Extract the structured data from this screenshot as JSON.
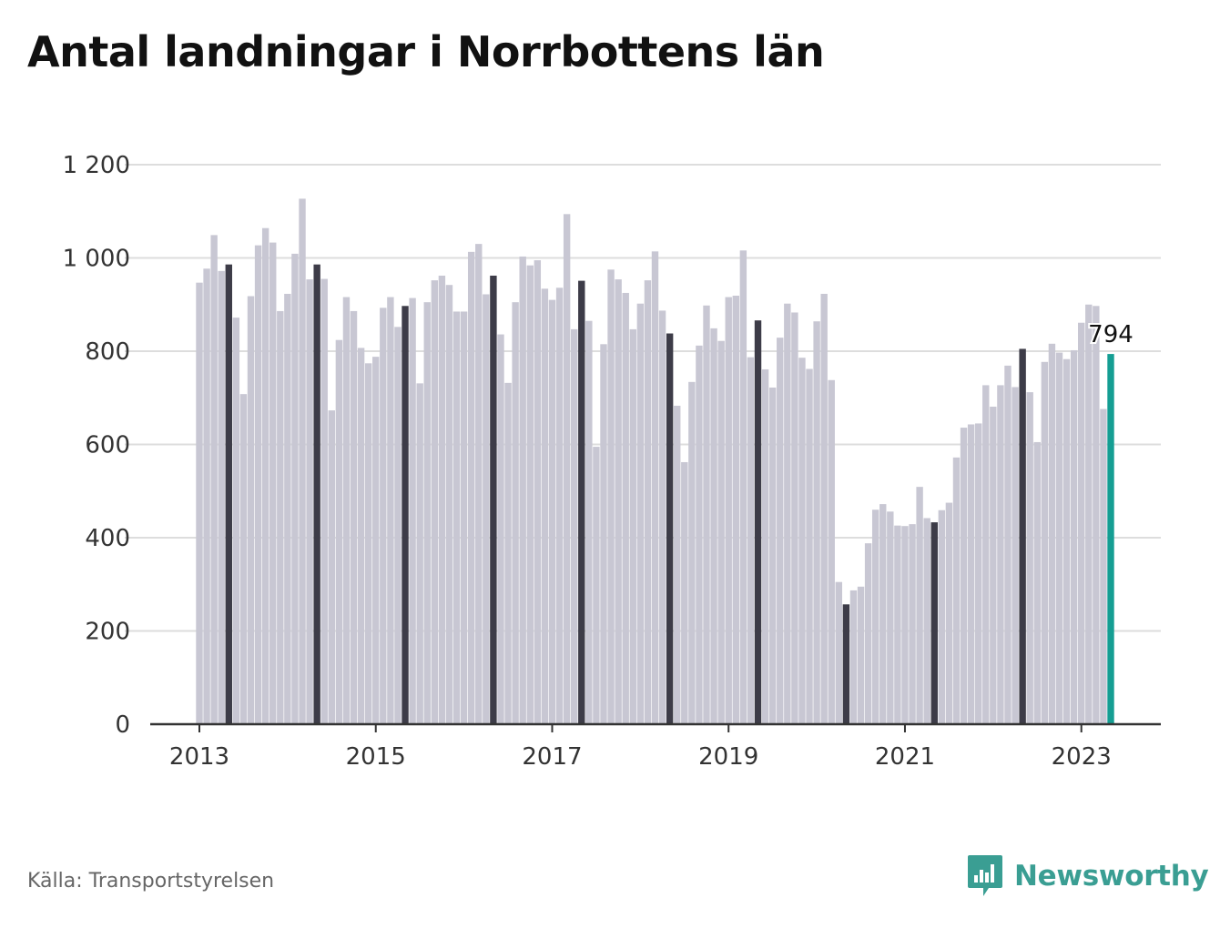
{
  "colors": {
    "bar_default": "#c8c7d3",
    "bar_highlight": "#3d3c48",
    "bar_latest": "#159e93",
    "grid": "#dddddd",
    "axis": "#333333",
    "brand": "#3a9e93"
  },
  "footer": {
    "source": "Källa: Transportstyrelsen",
    "brand_name": "Newsworthy",
    "brand_icon": "chat-bar-chart-icon"
  },
  "chart_data": {
    "type": "bar",
    "title": "Antal landningar i Norrbottens län",
    "xlabel": "",
    "ylabel": "",
    "ylim": [
      0,
      1200
    ],
    "y_ticks": [
      0,
      200,
      400,
      600,
      800,
      1000,
      1200
    ],
    "y_tick_labels": [
      "0",
      "200",
      "400",
      "600",
      "800",
      "1 000",
      "1 200"
    ],
    "x_tick_labels": [
      "2013",
      "2015",
      "2017",
      "2019",
      "2021",
      "2023"
    ],
    "grid": true,
    "legend": "none",
    "start_month": "2013-01",
    "highlight_month": "05",
    "annotation": {
      "month": "2023-05",
      "text": "794"
    },
    "values": [
      947,
      977,
      1049,
      972,
      986,
      872,
      708,
      918,
      1027,
      1064,
      1033,
      886,
      923,
      1009,
      1127,
      954,
      986,
      955,
      673,
      824,
      916,
      886,
      807,
      774,
      788,
      893,
      916,
      852,
      897,
      914,
      731,
      905,
      952,
      962,
      942,
      885,
      885,
      1013,
      1030,
      922,
      962,
      836,
      732,
      905,
      1003,
      984,
      995,
      934,
      910,
      936,
      1094,
      847,
      951,
      865,
      595,
      815,
      975,
      954,
      925,
      847,
      902,
      952,
      1014,
      887,
      838,
      683,
      562,
      734,
      812,
      898,
      849,
      822,
      916,
      919,
      1016,
      787,
      866,
      761,
      722,
      829,
      902,
      883,
      786,
      762,
      864,
      923,
      738,
      305,
      257,
      287,
      295,
      388,
      460,
      472,
      456,
      426,
      425,
      429,
      509,
      442,
      433,
      459,
      475,
      572,
      636,
      643,
      645,
      727,
      681,
      727,
      769,
      723,
      805,
      712,
      605,
      777,
      816,
      797,
      783,
      802,
      861,
      900,
      897,
      676,
      794
    ]
  }
}
